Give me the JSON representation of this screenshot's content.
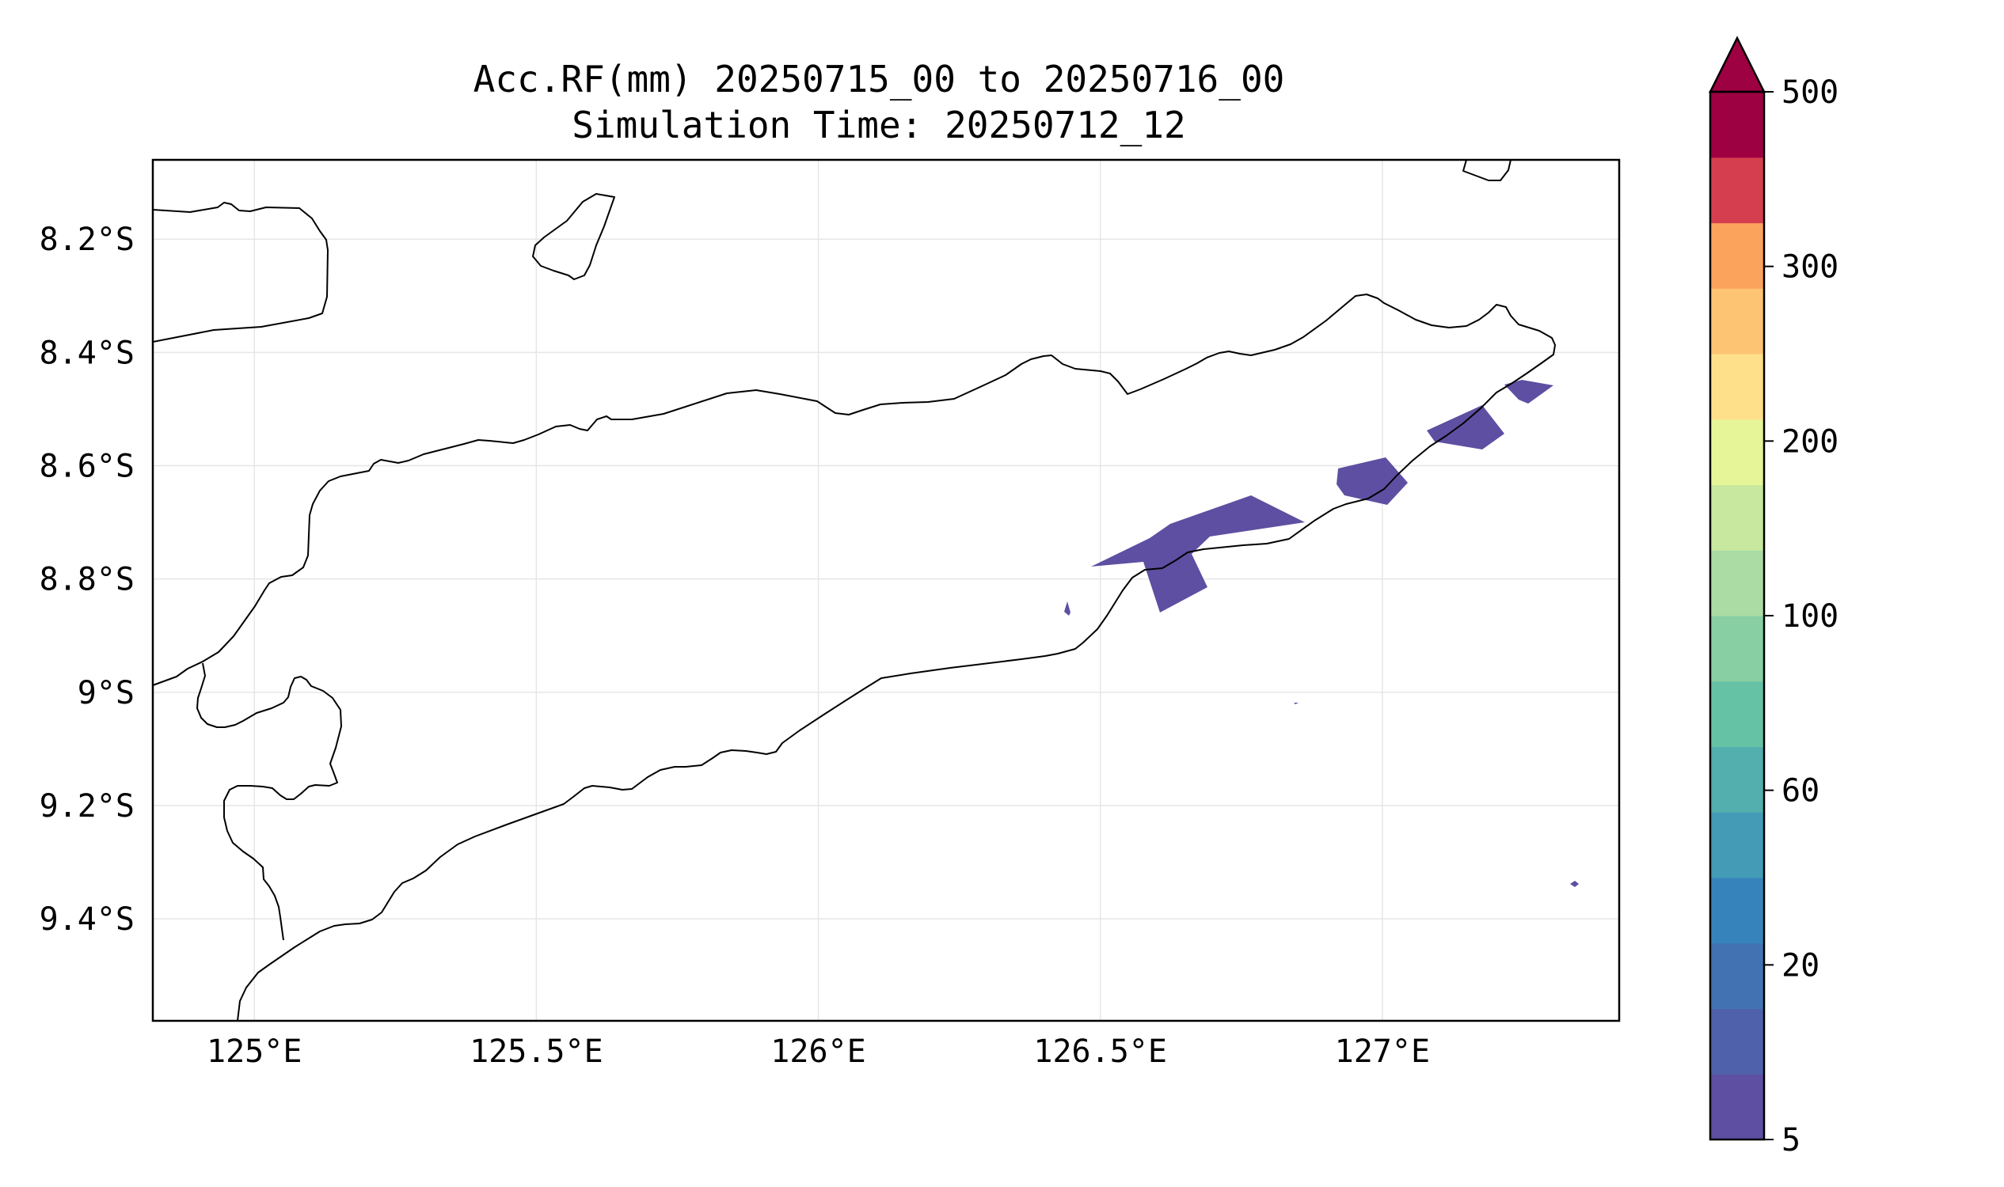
{
  "title_line1": "Acc.RF(mm) 20250715_00 to 20250716_00",
  "title_line2": "Simulation Time: 20250712_12",
  "map": {
    "lon_range": [
      124.82,
      127.42
    ],
    "lat_range": [
      -9.58,
      -8.06
    ],
    "x_ticks": [
      {
        "value": 125.0,
        "label": "125°E"
      },
      {
        "value": 125.5,
        "label": "125.5°E"
      },
      {
        "value": 126.0,
        "label": "126°E"
      },
      {
        "value": 126.5,
        "label": "126.5°E"
      },
      {
        "value": 127.0,
        "label": "127°E"
      }
    ],
    "y_ticks": [
      {
        "value": -8.2,
        "label": "8.2°S"
      },
      {
        "value": -8.4,
        "label": "8.4°S"
      },
      {
        "value": -8.6,
        "label": "8.6°S"
      },
      {
        "value": -8.8,
        "label": "8.8°S"
      },
      {
        "value": -9.0,
        "label": "9°S"
      },
      {
        "value": -9.2,
        "label": "9.2°S"
      },
      {
        "value": -9.4,
        "label": "9.4°S"
      }
    ],
    "gridlines": true,
    "rain_color": "#5e4fa2",
    "coast_color": "#000000"
  },
  "colorbar": {
    "levels": [
      "5",
      "10",
      "20",
      "40",
      "60",
      "80",
      "100",
      "150",
      "200",
      "250",
      "300",
      "350",
      "500"
    ],
    "labels": [
      {
        "index": 0,
        "label": "5"
      },
      {
        "index": 2,
        "label": "20"
      },
      {
        "index": 4,
        "label": "60"
      },
      {
        "index": 6,
        "label": "100"
      },
      {
        "index": 8,
        "label": "200"
      },
      {
        "index": 10,
        "label": "300"
      },
      {
        "index": 12,
        "label": "500"
      }
    ],
    "colors": [
      "#5e4fa2",
      "#4f61aa",
      "#4272b2",
      "#3683bb",
      "#439bb5",
      "#53aeae",
      "#66c2a5",
      "#88cfa4",
      "#aadca4",
      "#c7e89e",
      "#e6f598",
      "#fee08b",
      "#fdc473",
      "#fba35c",
      "#d53e4f",
      "#9e0142"
    ],
    "extend": "max",
    "extend_color": "#9e0142"
  }
}
